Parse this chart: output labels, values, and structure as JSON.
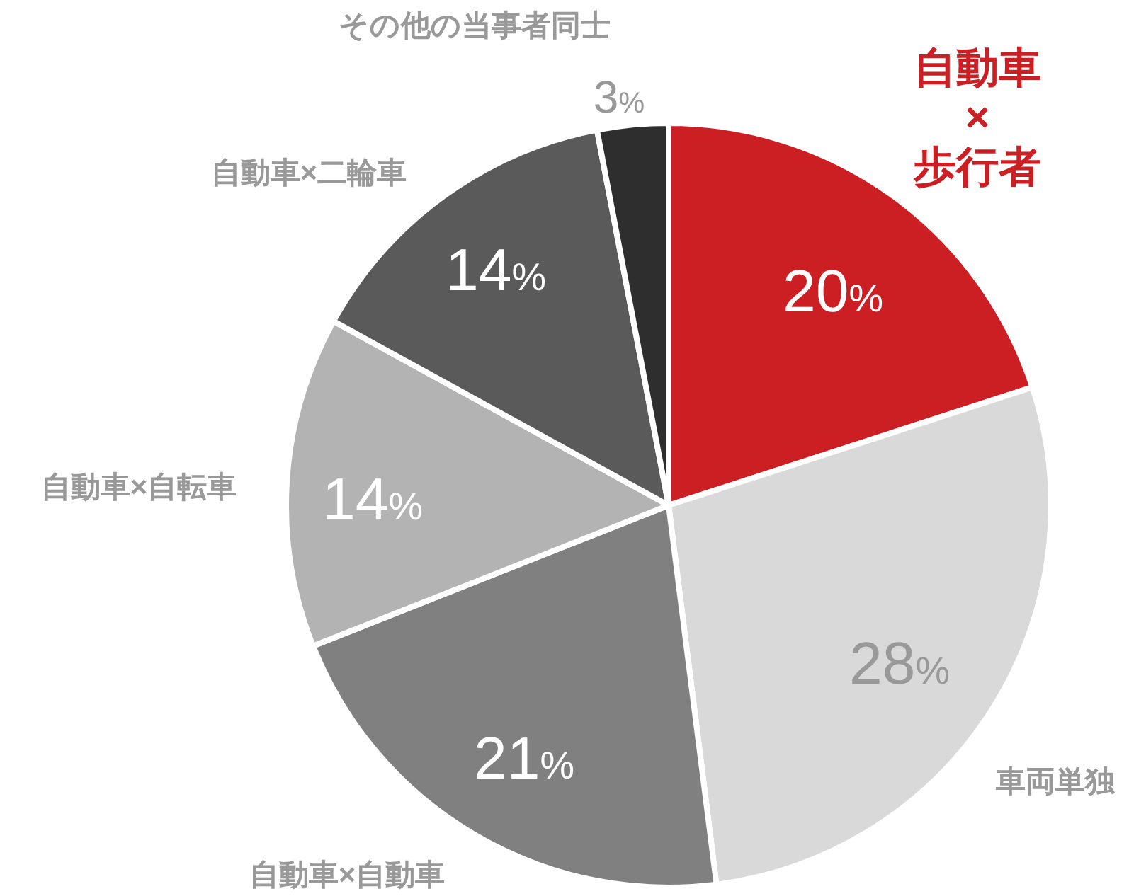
{
  "chart_data": {
    "type": "pie",
    "categories": [
      "自動車×歩行者",
      "車両単独",
      "自動車×自動車",
      "自動車×自転車",
      "自動車×二輪車",
      "その他の当事者同士"
    ],
    "values": [
      20,
      28,
      21,
      14,
      14,
      3
    ],
    "value_labels": [
      "20%",
      "28%",
      "21%",
      "14%",
      "14%",
      "3%"
    ],
    "colors": [
      "#cc1f24",
      "#d9d9d9",
      "#808080",
      "#b3b3b3",
      "#5a5a5a",
      "#2e2e2e"
    ]
  }
}
